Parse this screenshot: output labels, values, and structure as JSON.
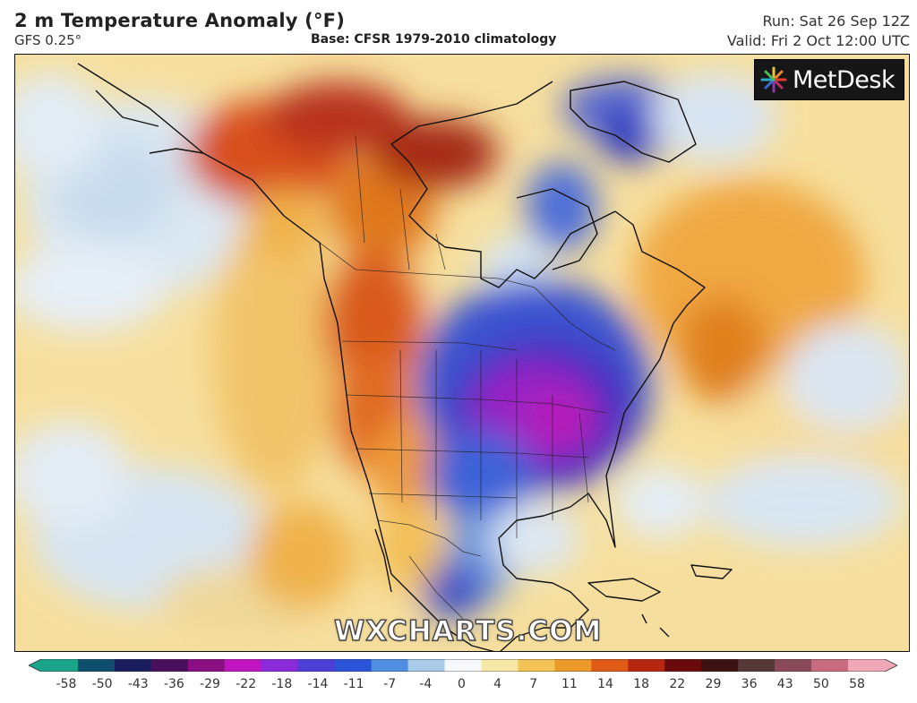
{
  "header": {
    "title": "2 m Temperature Anomaly (°F)",
    "model": "GFS 0.25°",
    "base": "Base: CFSR 1979-2010 climatology",
    "run": "Run: Sat 26 Sep 12Z",
    "valid": "Valid: Fri 2 Oct 12:00 UTC"
  },
  "logo": {
    "text": "MetDesk",
    "icon": "metdesk-burst-icon"
  },
  "watermark": {
    "text": "WXCHARTS.COM"
  },
  "colorbar": {
    "labels": [
      "-58",
      "-50",
      "-43",
      "-36",
      "-29",
      "-22",
      "-18",
      "-14",
      "-11",
      "-7",
      "-4",
      "0",
      "4",
      "7",
      "11",
      "14",
      "18",
      "22",
      "29",
      "36",
      "43",
      "50",
      "58"
    ],
    "colors": [
      "#1aa58a",
      "#0f4f6e",
      "#1a1e5e",
      "#4a0f5a",
      "#8a0f82",
      "#c015c0",
      "#8a2ad8",
      "#4b3fd8",
      "#2a55d8",
      "#4f8ee0",
      "#a8cce8",
      "#f6f8fb",
      "#f7e8a8",
      "#f3c455",
      "#ec9a2a",
      "#e05a18",
      "#b8260f",
      "#6a0a0a",
      "#3a1010",
      "#553838",
      "#8a4a5a",
      "#c86a80",
      "#f0a8b8"
    ]
  }
}
